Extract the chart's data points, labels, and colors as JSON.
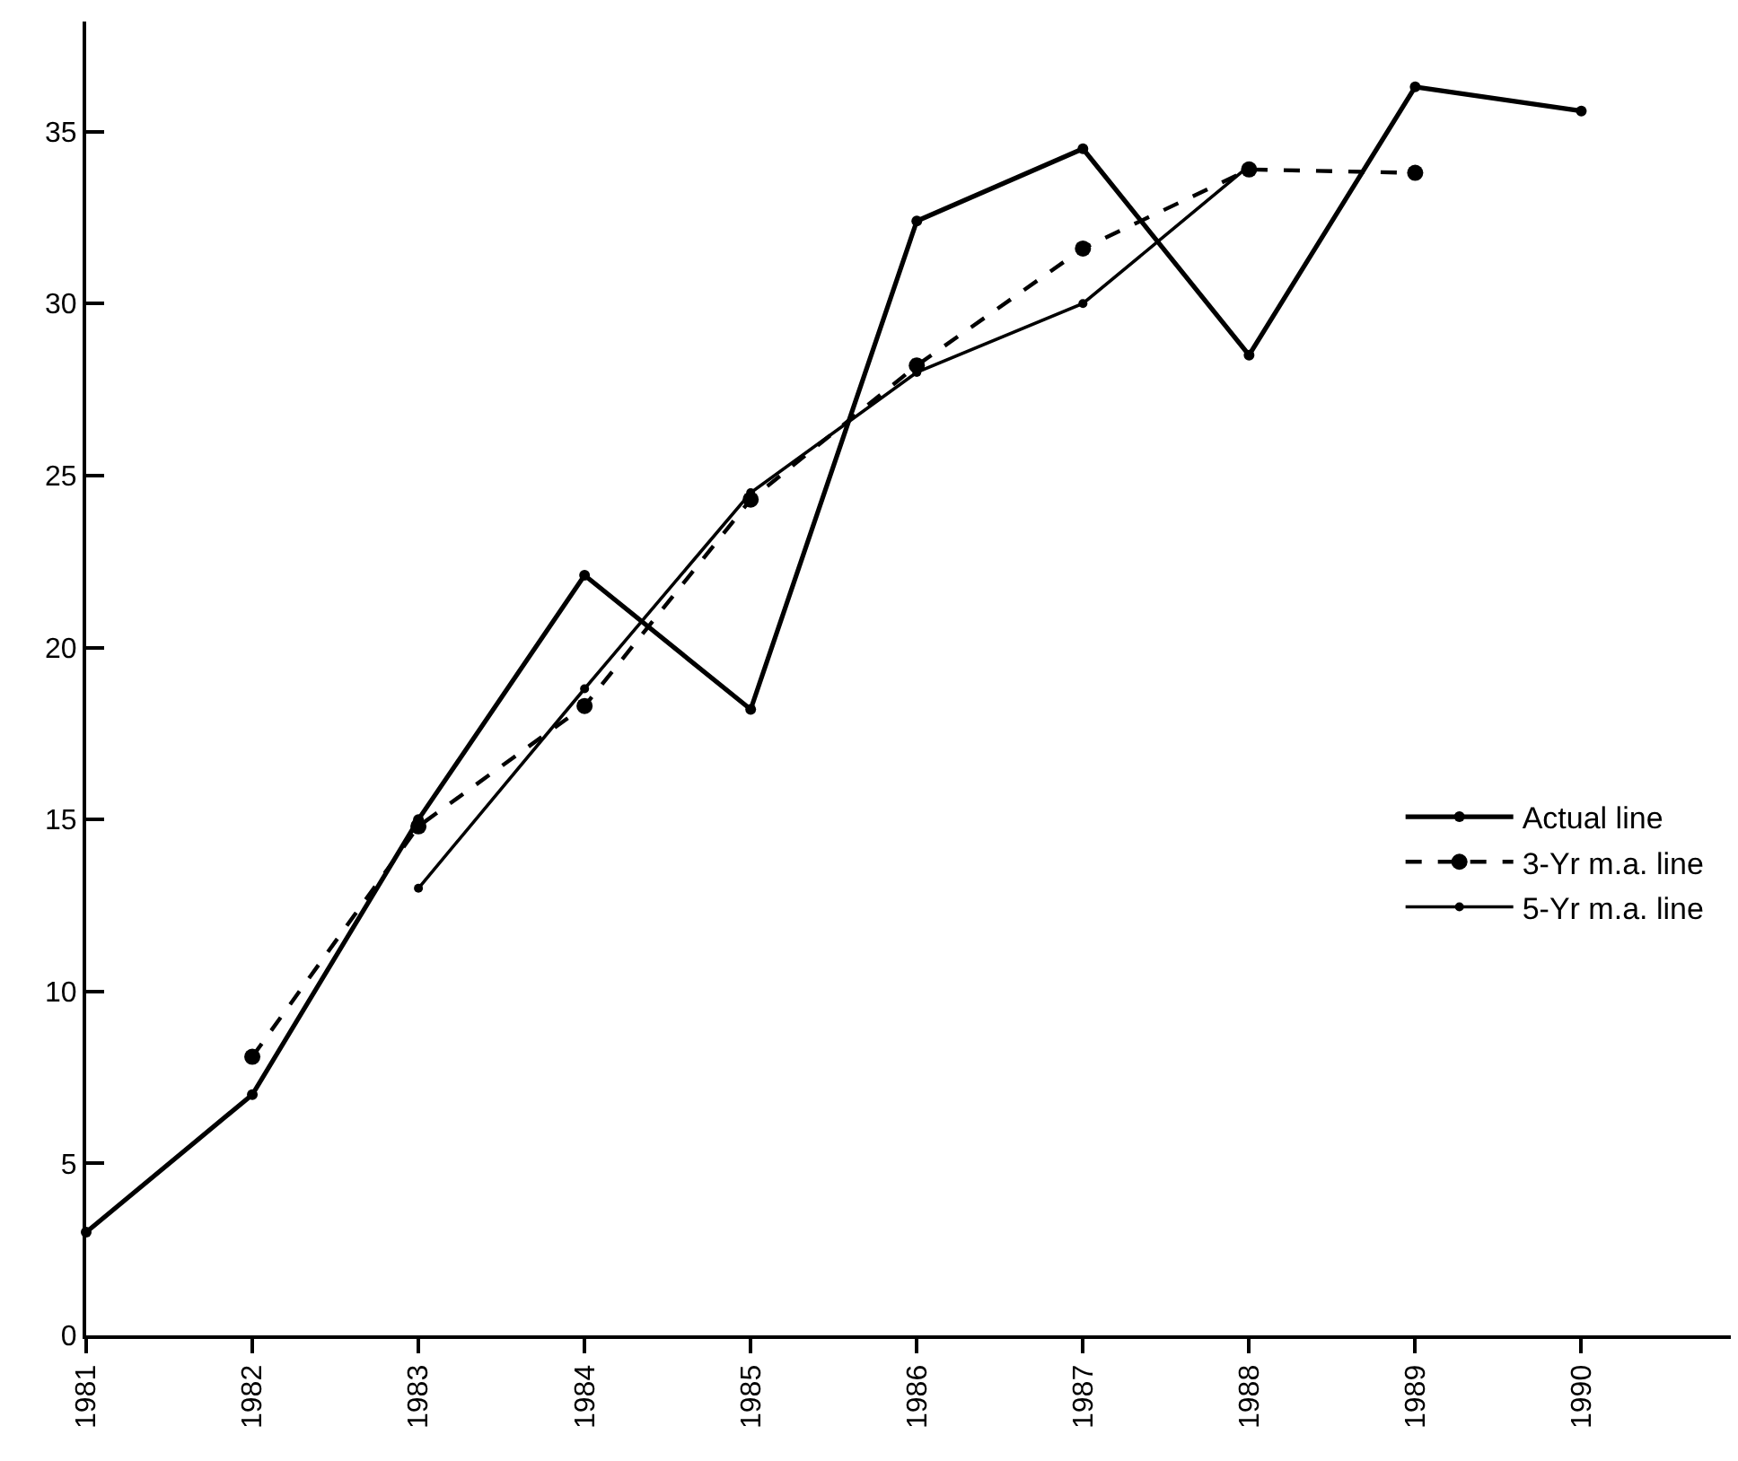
{
  "chart_data": {
    "type": "line",
    "x": [
      1981,
      1982,
      1983,
      1984,
      1985,
      1986,
      1987,
      1988,
      1989,
      1990
    ],
    "series": [
      {
        "name": "Actual line",
        "color": "#000000",
        "line_style": "solid",
        "values": [
          3.0,
          7.0,
          15.0,
          22.1,
          18.2,
          32.4,
          34.5,
          28.5,
          36.3,
          35.6
        ]
      },
      {
        "name": "3-Yr m.a. line",
        "color": "#000000",
        "line_style": "dashed",
        "values": [
          null,
          8.1,
          14.8,
          18.3,
          24.3,
          28.2,
          31.6,
          33.9,
          33.8,
          null
        ]
      },
      {
        "name": "5-Yr m.a. line",
        "color": "#000000",
        "line_style": "solid",
        "values": [
          null,
          null,
          13.0,
          18.8,
          24.5,
          28.0,
          30.0,
          34.0,
          null,
          null
        ]
      }
    ],
    "xlim": [
      1981,
      1990.9
    ],
    "xticks": [
      1981,
      1982,
      1983,
      1984,
      1985,
      1986,
      1987,
      1988,
      1989,
      1990
    ],
    "ylim": [
      0,
      38.2
    ],
    "yticks": [
      0,
      5,
      10,
      15,
      20,
      25,
      30,
      35
    ],
    "marker": "circle",
    "grid": false,
    "legend": "right"
  }
}
